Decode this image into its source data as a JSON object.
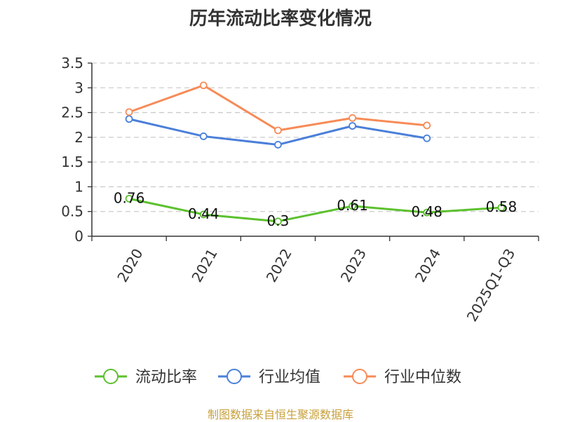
{
  "chart_data": {
    "type": "line",
    "title": "历年流动比率变化情况",
    "categories": [
      "2020",
      "2021",
      "2022",
      "2023",
      "2024",
      "2025Q1-Q3"
    ],
    "ylim": [
      0,
      3.5
    ],
    "yticks": [
      "0",
      "0.5",
      "1",
      "1.5",
      "2",
      "2.5",
      "3",
      "3.5"
    ],
    "grid": true,
    "legend_position": "bottom",
    "series": [
      {
        "name": "流动比率",
        "color": "#5cc12e",
        "values": [
          0.76,
          0.44,
          0.3,
          0.61,
          0.48,
          0.58
        ],
        "labels": [
          "0.76",
          "0.44",
          "0.3",
          "0.61",
          "0.48",
          "0.58"
        ]
      },
      {
        "name": "行业均值",
        "color": "#4a7fd9",
        "values": [
          2.37,
          2.02,
          1.85,
          2.23,
          1.98,
          null
        ]
      },
      {
        "name": "行业中位数",
        "color": "#f78b57",
        "values": [
          2.51,
          3.05,
          2.14,
          2.39,
          2.24,
          null
        ]
      }
    ]
  },
  "footer": {
    "source": "制图数据来自恒生聚源数据库"
  }
}
